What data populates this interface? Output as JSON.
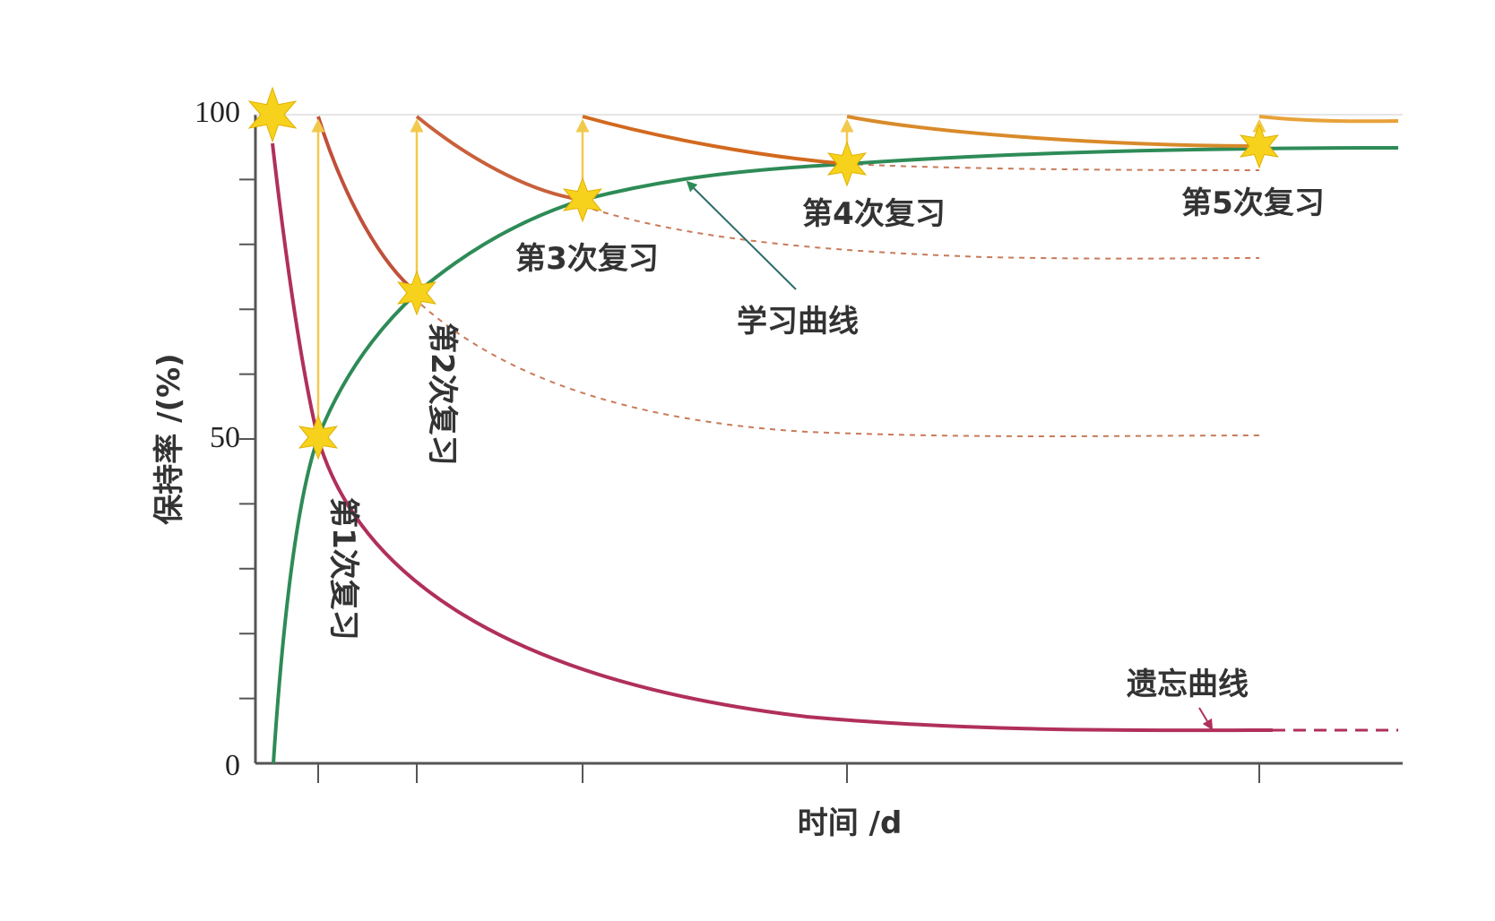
{
  "chart_data": {
    "type": "line",
    "xlabel": "时间 /d",
    "ylabel": "保持率 /(%)",
    "ylim": [
      0,
      100
    ],
    "yticks": [
      "0",
      "50",
      "100"
    ],
    "grid": false,
    "review_points": [
      {
        "label": "第1次复习",
        "x": 1,
        "y": 50,
        "orientation": "vertical"
      },
      {
        "label": "第2次复习",
        "x": 2,
        "y": 72,
        "orientation": "vertical"
      },
      {
        "label": "第3次复习",
        "x": 3,
        "y": 87,
        "orientation": "horizontal"
      },
      {
        "label": "第4次复习",
        "x": 4,
        "y": 92,
        "orientation": "horizontal"
      },
      {
        "label": "第5次复习",
        "x": 5,
        "y": 95,
        "orientation": "horizontal"
      }
    ],
    "series": [
      {
        "name": "学习曲线",
        "color": "#2e8b57"
      },
      {
        "name": "遗忘曲线",
        "color": "#b0305a"
      }
    ],
    "review_decay_color": "#d2691e",
    "review_arrow_color": "#f2c94c",
    "star_color": "#f7d21c"
  }
}
